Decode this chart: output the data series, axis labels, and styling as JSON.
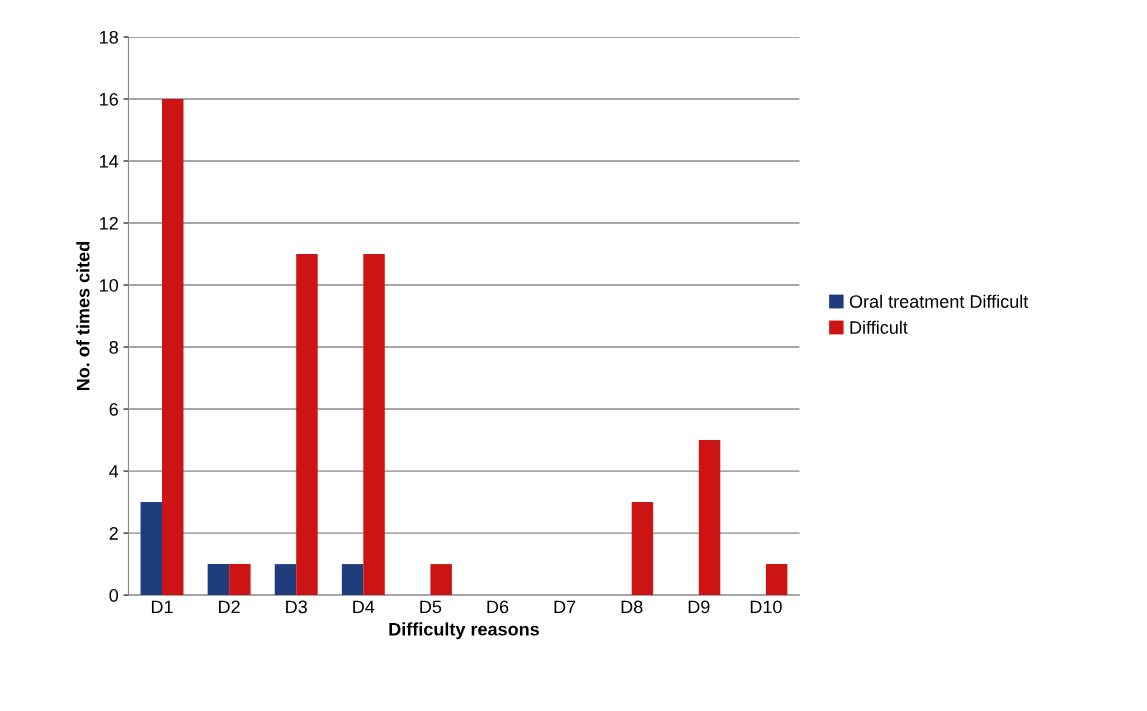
{
  "chart_data": {
    "type": "bar",
    "xlabel": "Difficulty reasons",
    "ylabel": "No. of times cited",
    "categories": [
      "D1",
      "D2",
      "D3",
      "D4",
      "D5",
      "D6",
      "D7",
      "D8",
      "D9",
      "D10"
    ],
    "series": [
      {
        "name": "Oral treatment Difficult",
        "color": "#1f3c7c",
        "values": [
          3,
          1,
          1,
          1,
          0,
          0,
          0,
          0,
          0,
          0
        ]
      },
      {
        "name": "Difficult",
        "color": "#cc1414",
        "values": [
          16,
          1,
          11,
          11,
          1,
          0,
          0,
          3,
          5,
          1
        ]
      }
    ],
    "ylim": [
      0,
      18
    ],
    "yticks": [
      0,
      2,
      4,
      6,
      8,
      10,
      12,
      14,
      16,
      18
    ],
    "grid": "y",
    "legend": "right"
  }
}
